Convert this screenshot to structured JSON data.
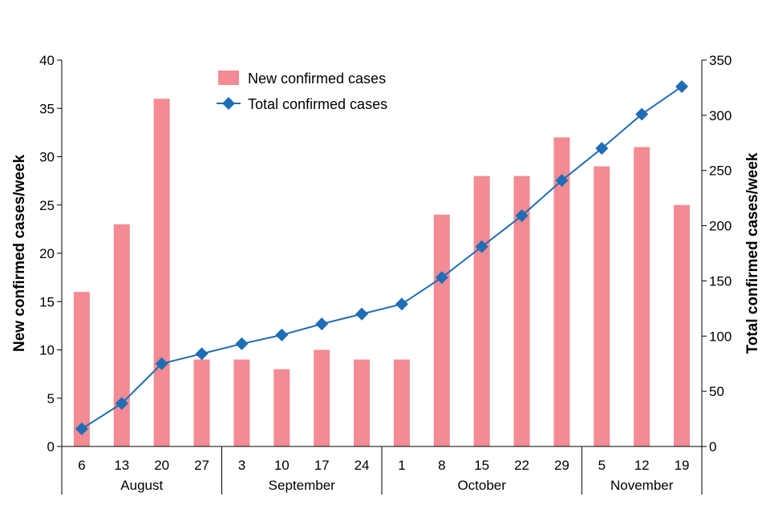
{
  "chart_data": {
    "type": "bar",
    "x_tick_labels": [
      "6",
      "13",
      "20",
      "27",
      "3",
      "10",
      "17",
      "24",
      "1",
      "8",
      "15",
      "22",
      "29",
      "5",
      "12",
      "19"
    ],
    "month_groups": [
      {
        "label": "August",
        "start": 0,
        "end": 3
      },
      {
        "label": "September",
        "start": 4,
        "end": 7
      },
      {
        "label": "October",
        "start": 8,
        "end": 12
      },
      {
        "label": "November",
        "start": 13,
        "end": 15
      }
    ],
    "series": [
      {
        "name": "New confirmed cases",
        "type": "bar",
        "axis": "left",
        "color": "#f28b93",
        "values": [
          16,
          23,
          36,
          9,
          9,
          8,
          10,
          9,
          9,
          24,
          28,
          28,
          32,
          29,
          31,
          25
        ]
      },
      {
        "name": "Total confirmed cases",
        "type": "line",
        "axis": "right",
        "color": "#1f6db5",
        "marker": "diamond",
        "values": [
          16,
          39,
          75,
          84,
          93,
          101,
          111,
          120,
          129,
          153,
          181,
          209,
          241,
          270,
          301,
          326
        ]
      }
    ],
    "ylabel": "New confirmed cases/week",
    "y2label": "Total confirmed cases/week",
    "ylim": [
      0,
      40
    ],
    "y_ticks": [
      0,
      5,
      10,
      15,
      20,
      25,
      30,
      35,
      40
    ],
    "y2lim": [
      0,
      350
    ],
    "y2_ticks": [
      0,
      50,
      100,
      150,
      200,
      250,
      300,
      350
    ],
    "grid": false,
    "legend_position": "top-center"
  }
}
